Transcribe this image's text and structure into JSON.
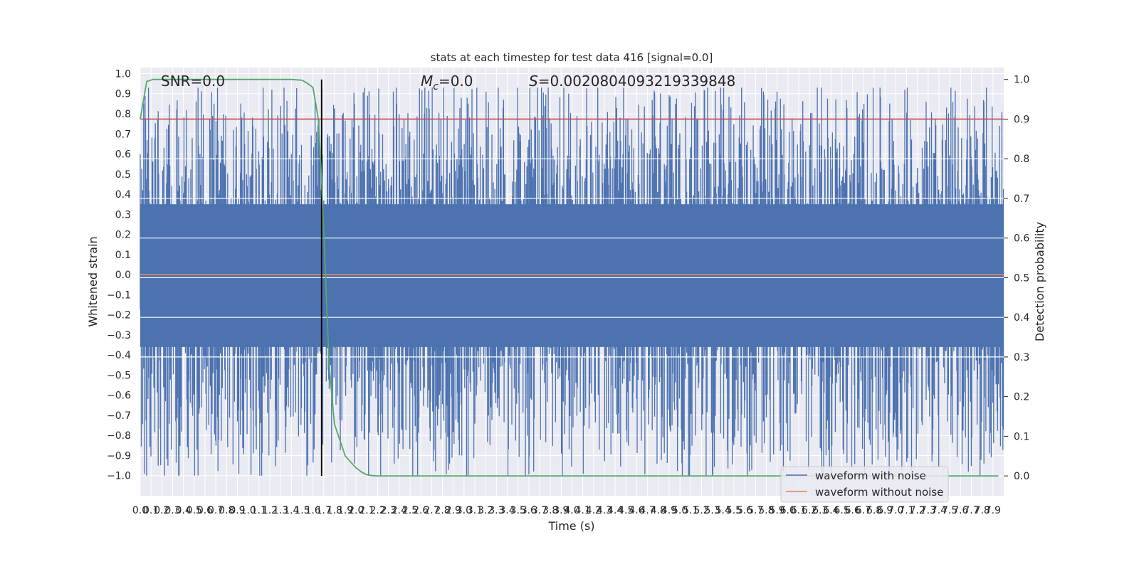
{
  "chart_data": {
    "type": "line",
    "title": "stats at each timestep for test data 416 [signal=0.0]",
    "xlabel": "Time (s)",
    "ylabel_left": "Whitened strain",
    "ylabel_right": "Detection probability",
    "xlim": [
      0.0,
      8.0
    ],
    "ylim_left": [
      -1.1,
      1.03
    ],
    "ylim_right": [
      -0.05,
      1.03
    ],
    "x_ticks": [
      0.0,
      0.1,
      0.2,
      0.3,
      0.4,
      0.5,
      0.6,
      0.7,
      0.8,
      0.9,
      1.0,
      1.1,
      1.2,
      1.3,
      1.4,
      1.5,
      1.6,
      1.7,
      1.8,
      1.9,
      2.0,
      2.1,
      2.2,
      2.3,
      2.4,
      2.5,
      2.6,
      2.7,
      2.8,
      2.9,
      3.0,
      3.1,
      3.2,
      3.3,
      3.4,
      3.5,
      3.6,
      3.7,
      3.8,
      3.9,
      4.0,
      4.1,
      4.2,
      4.3,
      4.4,
      4.5,
      4.6,
      4.7,
      4.8,
      4.9,
      5.0,
      5.1,
      5.2,
      5.3,
      5.4,
      5.5,
      5.6,
      5.7,
      5.8,
      5.9,
      6.0,
      6.1,
      6.2,
      6.3,
      6.4,
      6.5,
      6.6,
      6.7,
      6.8,
      6.9,
      7.0,
      7.1,
      7.2,
      7.3,
      7.4,
      7.5,
      7.6,
      7.7,
      7.8,
      7.9
    ],
    "y_ticks_left": [
      -1.0,
      -0.9,
      -0.8,
      -0.7,
      -0.6,
      -0.5,
      -0.4,
      -0.3,
      -0.2,
      -0.1,
      0.0,
      0.1,
      0.2,
      0.3,
      0.4,
      0.5,
      0.6,
      0.7,
      0.8,
      0.9,
      1.0
    ],
    "y_ticks_right": [
      0.0,
      0.1,
      0.2,
      0.3,
      0.4,
      0.5,
      0.6,
      0.7,
      0.8,
      0.9,
      1.0
    ],
    "grid": true,
    "legend_position": "lower-right",
    "annotations": {
      "snr": "SNR=0.0",
      "mc_prefix": "M",
      "mc_sub": "c",
      "mc_value": "=0.0",
      "s_prefix": "S",
      "s_value": "=0.0020804093219339848"
    },
    "series": [
      {
        "name": "waveform with noise",
        "axis": "left",
        "color": "#4c72b0",
        "kind": "noise",
        "amplitude_max": 0.93,
        "amplitude_min": -1.0
      },
      {
        "name": "waveform without noise",
        "axis": "left",
        "color": "#dd8452",
        "x": [
          0.0,
          8.0
        ],
        "y": [
          0.0,
          0.0
        ]
      },
      {
        "name": "detection probability",
        "axis": "right",
        "color": "#55a868",
        "x": [
          0.0,
          0.06,
          0.12,
          0.2,
          0.4,
          0.8,
          1.2,
          1.4,
          1.5,
          1.55,
          1.6,
          1.65,
          1.68,
          1.71,
          1.75,
          1.8,
          1.9,
          2.0,
          2.05,
          2.1,
          2.15,
          2.2,
          2.3,
          2.5,
          3.0,
          4.0,
          5.0,
          6.0,
          7.0,
          7.95
        ],
        "y": [
          0.9,
          0.995,
          1.0,
          1.0,
          1.0,
          1.0,
          1.0,
          1.0,
          0.998,
          0.99,
          0.98,
          0.9,
          0.75,
          0.55,
          0.28,
          0.13,
          0.05,
          0.02,
          0.01,
          0.003,
          0.001,
          0.0,
          0.0,
          0.0,
          0.0,
          0.0,
          0.0,
          0.0,
          0.0,
          0.0
        ]
      }
    ],
    "threshold": {
      "axis": "right",
      "value": 0.9,
      "color": "#c44e52"
    },
    "vertical_marker": {
      "x": 1.68,
      "color": "#000000"
    }
  }
}
